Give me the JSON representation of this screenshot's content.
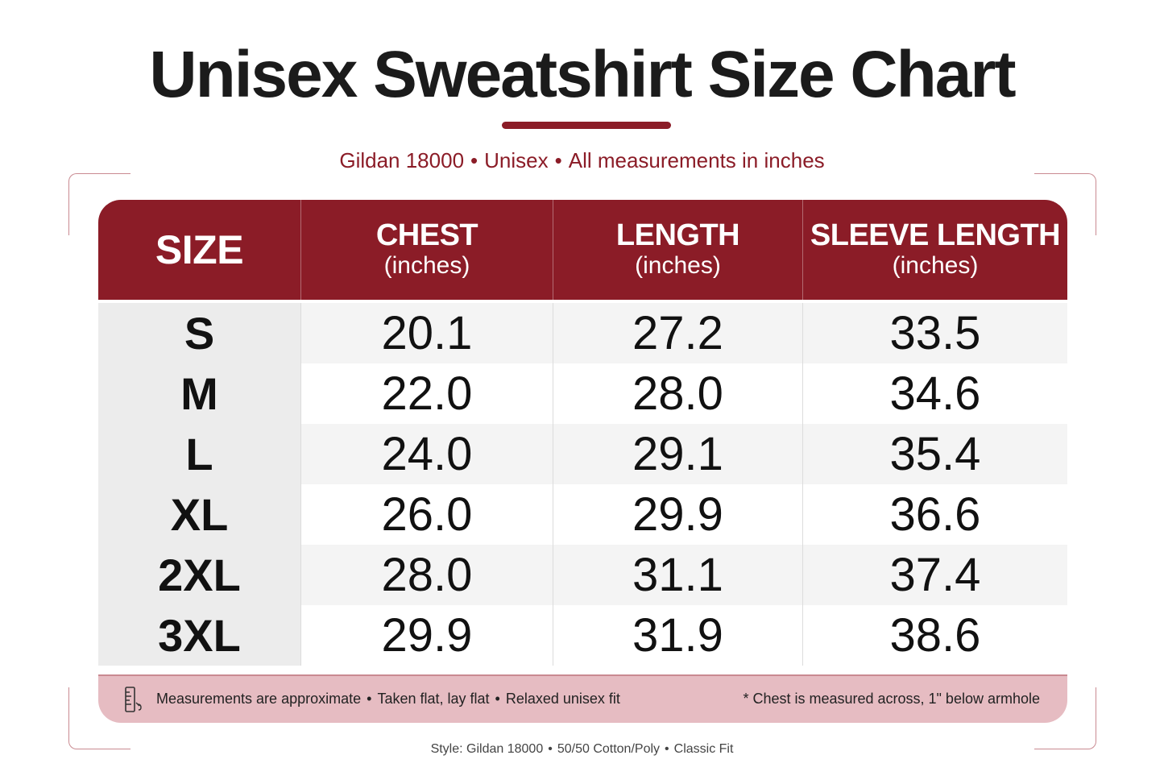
{
  "title": "Unisex Sweatshirt Size Chart",
  "subtitle": {
    "parts": [
      "Gildan 18000",
      "Unisex",
      "All measurements in inches"
    ],
    "separator": "•"
  },
  "colors": {
    "accent": "#8b1c27",
    "footer_band": "#e6bcc2",
    "stripe": "#f4f4f4"
  },
  "table": {
    "headers": [
      {
        "label": "SIZE",
        "unit": ""
      },
      {
        "label": "CHEST",
        "unit": "(inches)"
      },
      {
        "label": "LENGTH",
        "unit": "(inches)"
      },
      {
        "label": "SLEEVE LENGTH",
        "unit": "(inches)"
      }
    ],
    "rows": [
      {
        "size": "S",
        "chest": "20.1",
        "length": "27.2",
        "sleeve": "33.5"
      },
      {
        "size": "M",
        "chest": "22.0",
        "length": "28.0",
        "sleeve": "34.6"
      },
      {
        "size": "L",
        "chest": "24.0",
        "length": "29.1",
        "sleeve": "35.4"
      },
      {
        "size": "XL",
        "chest": "26.0",
        "length": "29.9",
        "sleeve": "36.6"
      },
      {
        "size": "2XL",
        "chest": "28.0",
        "length": "31.1",
        "sleeve": "37.4"
      },
      {
        "size": "3XL",
        "chest": "29.9",
        "length": "31.9",
        "sleeve": "38.6"
      }
    ]
  },
  "footer": {
    "icon": "ruler-icon",
    "notes": [
      "Measurements are approximate",
      "Taken flat, lay flat",
      "Relaxed unisex fit"
    ],
    "separator": "•",
    "chest_note": "* Chest is measured across, 1\" below armhole"
  },
  "bottom_note": {
    "parts": [
      "Style: Gildan 18000",
      "50/50 Cotton/Poly",
      "Classic Fit"
    ],
    "separator": "•"
  }
}
